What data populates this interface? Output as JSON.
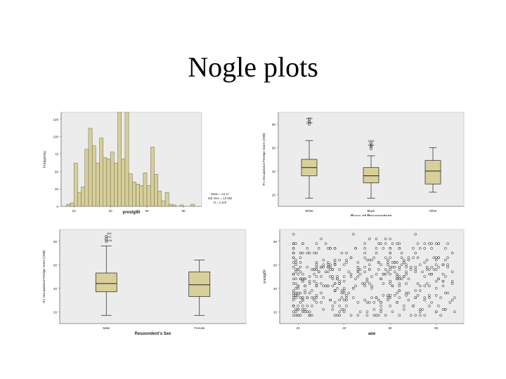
{
  "slide": {
    "title": "Nogle plots"
  },
  "colors": {
    "plot_bg": "#ececec",
    "box_fill": "#d8d09a",
    "bar_fill": "#d7cf9a",
    "mark": "#222222"
  },
  "chart_data": [
    {
      "type": "bar",
      "name": "histogram",
      "xlabel": "prestg80",
      "ylabel": "Frequency",
      "x_ticks": [
        "20",
        "40",
        "60",
        "80"
      ],
      "y_ticks": [
        "0",
        "25",
        "50",
        "75",
        "100",
        "125"
      ],
      "xlim": [
        13,
        90
      ],
      "ylim": [
        0,
        135
      ],
      "bin_width": 2,
      "bins": [
        {
          "x": 17,
          "y": 3
        },
        {
          "x": 19,
          "y": 5
        },
        {
          "x": 21,
          "y": 62
        },
        {
          "x": 23,
          "y": 20
        },
        {
          "x": 25,
          "y": 28
        },
        {
          "x": 27,
          "y": 82
        },
        {
          "x": 29,
          "y": 112
        },
        {
          "x": 31,
          "y": 87
        },
        {
          "x": 33,
          "y": 62
        },
        {
          "x": 35,
          "y": 98
        },
        {
          "x": 37,
          "y": 70
        },
        {
          "x": 39,
          "y": 68
        },
        {
          "x": 41,
          "y": 78
        },
        {
          "x": 43,
          "y": 62
        },
        {
          "x": 45,
          "y": 135
        },
        {
          "x": 47,
          "y": 68
        },
        {
          "x": 49,
          "y": 135
        },
        {
          "x": 51,
          "y": 47
        },
        {
          "x": 53,
          "y": 35
        },
        {
          "x": 55,
          "y": 32
        },
        {
          "x": 57,
          "y": 30
        },
        {
          "x": 59,
          "y": 48
        },
        {
          "x": 61,
          "y": 30
        },
        {
          "x": 63,
          "y": 85
        },
        {
          "x": 65,
          "y": 46
        },
        {
          "x": 67,
          "y": 22
        },
        {
          "x": 69,
          "y": 8
        },
        {
          "x": 71,
          "y": 20
        },
        {
          "x": 73,
          "y": 3
        },
        {
          "x": 75,
          "y": 2
        },
        {
          "x": 79,
          "y": 2
        },
        {
          "x": 85,
          "y": 3
        }
      ],
      "stats": [
        "Mean = 44.17",
        "Std. Dev. = 13.362",
        "N = 1,419"
      ]
    },
    {
      "type": "box",
      "name": "prestige-by-race",
      "xlabel": "Race of Respondent",
      "ylabel": "R's Occupational Prestige Score (1980)",
      "categories": [
        "White",
        "Black",
        "Other"
      ],
      "y_ticks": [
        "20",
        "40",
        "60",
        "80"
      ],
      "ylim": [
        10,
        90
      ],
      "boxes": [
        {
          "min": 17,
          "q1": 36,
          "median": 43,
          "q3": 50,
          "max": 66,
          "outliers": [
            80,
            82,
            84
          ]
        },
        {
          "min": 17,
          "q1": 30,
          "median": 36,
          "q3": 43,
          "max": 53,
          "outliers": [
            59,
            61,
            62,
            64
          ]
        },
        {
          "min": 22,
          "q1": 29,
          "median": 40,
          "q3": 49,
          "max": 60,
          "outliers": []
        }
      ],
      "outlier_labels": [
        "1009",
        "1096",
        "1013",
        "1312"
      ]
    },
    {
      "type": "box",
      "name": "prestige-by-sex",
      "xlabel": "Respondent's Sex",
      "ylabel": "R's Occupational Prestige Score (1980)",
      "categories": [
        "Male",
        "Female"
      ],
      "y_ticks": [
        "20",
        "40",
        "60",
        "80"
      ],
      "ylim": [
        10,
        90
      ],
      "boxes": [
        {
          "min": 17,
          "q1": 37,
          "median": 44,
          "q3": 53,
          "max": 76,
          "outliers": [
            80,
            82,
            84
          ]
        },
        {
          "min": 17,
          "q1": 33,
          "median": 43,
          "q3": 54,
          "max": 64,
          "outliers": []
        }
      ],
      "outlier_labels": [
        "406",
        "721",
        "1116"
      ]
    },
    {
      "type": "scatter",
      "name": "prestige-vs-age",
      "xlabel": "age",
      "ylabel": "prestg80",
      "x_ticks": [
        "20",
        "40",
        "60",
        "80"
      ],
      "y_ticks": [
        "20",
        "40",
        "60",
        "80"
      ],
      "xlim": [
        12,
        92
      ],
      "ylim": [
        10,
        90
      ]
    }
  ]
}
